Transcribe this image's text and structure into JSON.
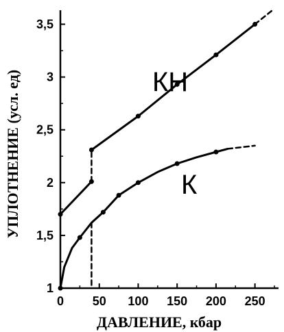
{
  "chart_data": {
    "type": "line",
    "title": "",
    "xlabel": "ДАВЛЕНИЕ, кбар",
    "ylabel": "УПЛОТНЕНИЕ (усл. ед)",
    "xlim": [
      0,
      275
    ],
    "ylim": [
      1,
      3.6
    ],
    "x_ticks": [
      0,
      50,
      100,
      150,
      200,
      250
    ],
    "x_tick_labels": [
      "0",
      "50",
      "100",
      "150",
      "200",
      "250"
    ],
    "y_ticks": [
      1,
      1.5,
      2,
      2.5,
      3,
      3.5
    ],
    "y_tick_labels": [
      "1",
      "1,5",
      "2",
      "2,5",
      "3",
      "3,5"
    ],
    "grid": false,
    "series": [
      {
        "name": "КН",
        "segments": [
          {
            "style": "solid",
            "points": [
              [
                0,
                1.7
              ],
              [
                40,
                2.01
              ]
            ]
          },
          {
            "style": "dashed",
            "points": [
              [
                40,
                2.01
              ],
              [
                40,
                2.31
              ]
            ]
          },
          {
            "style": "solid",
            "points": [
              [
                40,
                2.31
              ],
              [
                100,
                2.63
              ],
              [
                150,
                2.93
              ],
              [
                200,
                3.21
              ],
              [
                250,
                3.5
              ]
            ]
          },
          {
            "style": "dashed",
            "points": [
              [
                250,
                3.5
              ],
              [
                272,
                3.63
              ]
            ]
          }
        ],
        "markers": [
          [
            0,
            1.7
          ],
          [
            40,
            2.01
          ],
          [
            40,
            2.31
          ],
          [
            100,
            2.63
          ],
          [
            150,
            2.93
          ],
          [
            200,
            3.21
          ],
          [
            250,
            3.5
          ]
        ]
      },
      {
        "name": "К",
        "segments": [
          {
            "style": "solid",
            "points": [
              [
                0,
                1.0
              ],
              [
                5,
                1.2
              ],
              [
                15,
                1.38
              ],
              [
                25,
                1.48
              ],
              [
                40,
                1.62
              ],
              [
                55,
                1.72
              ],
              [
                75,
                1.88
              ],
              [
                100,
                2.0
              ],
              [
                125,
                2.1
              ],
              [
                150,
                2.18
              ],
              [
                175,
                2.24
              ],
              [
                200,
                2.29
              ],
              [
                215,
                2.32
              ]
            ]
          },
          {
            "style": "dashed",
            "points": [
              [
                215,
                2.32
              ],
              [
                250,
                2.35
              ]
            ]
          },
          {
            "style": "dashed",
            "points": [
              [
                40,
                1.62
              ],
              [
                40,
                1.0
              ]
            ]
          }
        ],
        "markers": [
          [
            0,
            1.0
          ],
          [
            25,
            1.48
          ],
          [
            55,
            1.72
          ],
          [
            75,
            1.88
          ],
          [
            100,
            2.0
          ],
          [
            150,
            2.18
          ],
          [
            200,
            2.29
          ]
        ]
      }
    ]
  }
}
